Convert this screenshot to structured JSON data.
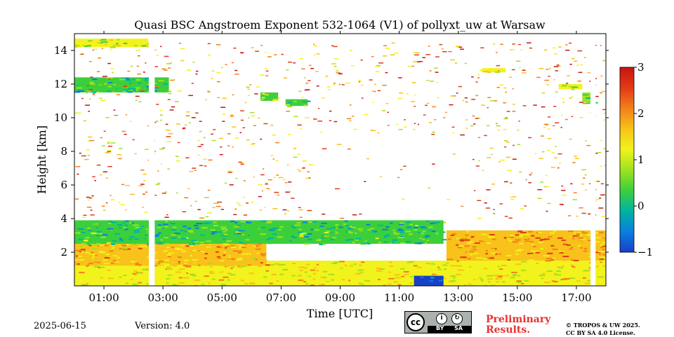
{
  "chart_data": {
    "type": "heatmap",
    "title": "Quasi BSC Angstroem Exponent 532-1064 (V1) of pollyxt_uw at Warsaw",
    "xlabel": "Time [UTC]",
    "ylabel": "Height [km]",
    "xlim_hours": [
      0.0,
      18.0
    ],
    "ylim_km": [
      0.0,
      15.0
    ],
    "x_ticks": [
      {
        "value": 1,
        "label": "01:00"
      },
      {
        "value": 3,
        "label": "03:00"
      },
      {
        "value": 5,
        "label": "05:00"
      },
      {
        "value": 7,
        "label": "07:00"
      },
      {
        "value": 9,
        "label": "09:00"
      },
      {
        "value": 11,
        "label": "11:00"
      },
      {
        "value": 13,
        "label": "13:00"
      },
      {
        "value": 15,
        "label": "15:00"
      },
      {
        "value": 17,
        "label": "17:00"
      }
    ],
    "y_ticks": [
      {
        "value": 2,
        "label": "2"
      },
      {
        "value": 4,
        "label": "4"
      },
      {
        "value": 6,
        "label": "6"
      },
      {
        "value": 8,
        "label": "8"
      },
      {
        "value": 10,
        "label": "10"
      },
      {
        "value": 12,
        "label": "12"
      },
      {
        "value": 14,
        "label": "14"
      }
    ],
    "colorbar": {
      "vmin": -1,
      "vmax": 3,
      "ticks": [
        {
          "value": 3,
          "label": "3"
        },
        {
          "value": 2,
          "label": "2"
        },
        {
          "value": 1,
          "label": "1"
        },
        {
          "value": 0,
          "label": "0"
        },
        {
          "value": -1,
          "label": "−1"
        }
      ],
      "colormap": [
        "#1840c8",
        "#0a7ee0",
        "#00b4a0",
        "#3ccf3c",
        "#9ee21e",
        "#f2f21c",
        "#f8c21a",
        "#f2801a",
        "#e23a16",
        "#c81412"
      ]
    },
    "data_gaps_hours": [
      [
        2.52,
        2.72
      ],
      [
        17.48,
        17.65
      ]
    ],
    "regions": [
      {
        "name": "boundary-layer-lower",
        "t0": 0.0,
        "t1": 18.0,
        "h0": 0.0,
        "h1": 1.5,
        "value": 1.3
      },
      {
        "name": "boundary-layer-evening",
        "t0": 12.6,
        "t1": 18.0,
        "h0": 1.5,
        "h1": 3.3,
        "value": 1.7
      },
      {
        "name": "residual-layer-morning",
        "t0": 0.0,
        "t1": 6.5,
        "h0": 1.2,
        "h1": 2.6,
        "value": 1.6
      },
      {
        "name": "aerosol-layer-low-exponent",
        "t0": 0.0,
        "t1": 12.5,
        "h0": 2.5,
        "h1": 3.9,
        "value": 0.35
      },
      {
        "name": "cirrus-morning",
        "t0": 0.0,
        "t1": 3.2,
        "h0": 11.5,
        "h1": 12.4,
        "value": 0.3
      },
      {
        "name": "cloud-0715",
        "t0": 7.15,
        "t1": 7.9,
        "h0": 10.7,
        "h1": 11.1,
        "value": 0.3
      },
      {
        "name": "cloud-0630",
        "t0": 6.3,
        "t1": 6.9,
        "h0": 11.0,
        "h1": 11.5,
        "value": 0.5
      },
      {
        "name": "cloud-1700",
        "t0": 16.4,
        "t1": 17.2,
        "h0": 11.7,
        "h1": 12.0,
        "value": 1.0
      },
      {
        "name": "cloud-1715",
        "t0": 17.2,
        "t1": 17.55,
        "h0": 10.9,
        "h1": 11.5,
        "value": 0.6
      },
      {
        "name": "thin-layer-1430",
        "t0": 13.8,
        "t1": 14.6,
        "h0": 12.7,
        "h1": 12.95,
        "value": 1.3
      },
      {
        "name": "upper-layer-early",
        "t0": 0.0,
        "t1": 2.5,
        "h0": 14.2,
        "h1": 14.7,
        "value": 1.1
      },
      {
        "name": "minimum-near-noon",
        "t0": 11.5,
        "t1": 12.5,
        "h0": 0.0,
        "h1": 0.6,
        "value": -0.8
      }
    ]
  },
  "footer": {
    "date": "2025-06-15",
    "version": "Version: 4.0",
    "preliminary": [
      "Preliminary",
      "Results."
    ],
    "copyright": [
      "© TROPOS & UW 2025.",
      "CC BY SA 4.0 License."
    ],
    "cc_badge": {
      "by": "BY",
      "sa": "SA",
      "cc": "cc"
    },
    "colors": {
      "preliminary": "#e8312f"
    }
  }
}
